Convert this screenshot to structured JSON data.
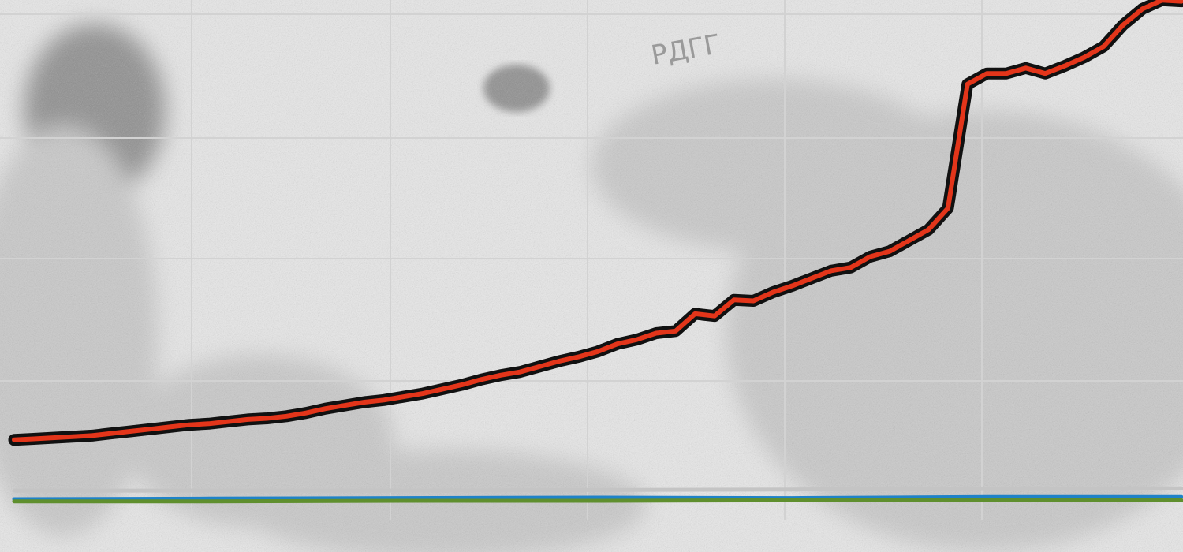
{
  "background": {
    "description_lettering": "РДГГ",
    "colors": {
      "light": "#e8e8e8",
      "mid": "#c9c9c9",
      "dark": "#8f8f8f"
    }
  },
  "chart_data": {
    "type": "line",
    "title": "",
    "xlabel": "",
    "ylabel": "",
    "grid": true,
    "legend": "none",
    "xlim": [
      0,
      60
    ],
    "ylim": [
      0,
      4.5
    ],
    "series": [
      {
        "color": "#e3351a",
        "outline": "#111111",
        "x": [
          0,
          1,
          2,
          3,
          4,
          5,
          6,
          7,
          8,
          9,
          10,
          11,
          12,
          13,
          14,
          15,
          16,
          17,
          18,
          19,
          20,
          21,
          22,
          23,
          24,
          25,
          26,
          27,
          28,
          29,
          30,
          31,
          32,
          33,
          34,
          35,
          36,
          37,
          38,
          39,
          40,
          41,
          42,
          43,
          44,
          45,
          46,
          47,
          48,
          49,
          50,
          51,
          52,
          53,
          54,
          55,
          56,
          57,
          58,
          59,
          60
        ],
        "values": [
          0.55,
          0.56,
          0.57,
          0.58,
          0.59,
          0.61,
          0.63,
          0.65,
          0.67,
          0.69,
          0.7,
          0.72,
          0.74,
          0.75,
          0.77,
          0.8,
          0.84,
          0.87,
          0.9,
          0.92,
          0.95,
          0.98,
          1.02,
          1.06,
          1.11,
          1.15,
          1.18,
          1.23,
          1.28,
          1.32,
          1.37,
          1.44,
          1.48,
          1.54,
          1.56,
          1.72,
          1.7,
          1.85,
          1.84,
          1.92,
          1.98,
          2.05,
          2.12,
          2.15,
          2.25,
          2.3,
          2.4,
          2.5,
          2.7,
          3.85,
          3.95,
          3.95,
          4.0,
          3.95,
          4.02,
          4.1,
          4.2,
          4.4,
          4.55,
          4.63,
          4.62
        ]
      },
      {
        "color": "#c4c4c4",
        "x": [
          0,
          10,
          20,
          30,
          40,
          50,
          60
        ],
        "values": [
          0.08,
          0.08,
          0.08,
          0.085,
          0.09,
          0.095,
          0.1
        ]
      },
      {
        "color": "#1f82c8",
        "x": [
          0,
          10,
          20,
          30,
          40,
          50,
          60
        ],
        "values": [
          0.0,
          0.005,
          0.01,
          0.015,
          0.01,
          0.02,
          0.02
        ]
      },
      {
        "color": "#5f8f2e",
        "x": [
          0,
          10,
          20,
          30,
          40,
          50,
          60
        ],
        "values": [
          -0.02,
          -0.02,
          -0.015,
          -0.015,
          -0.01,
          -0.01,
          -0.01
        ]
      }
    ]
  }
}
